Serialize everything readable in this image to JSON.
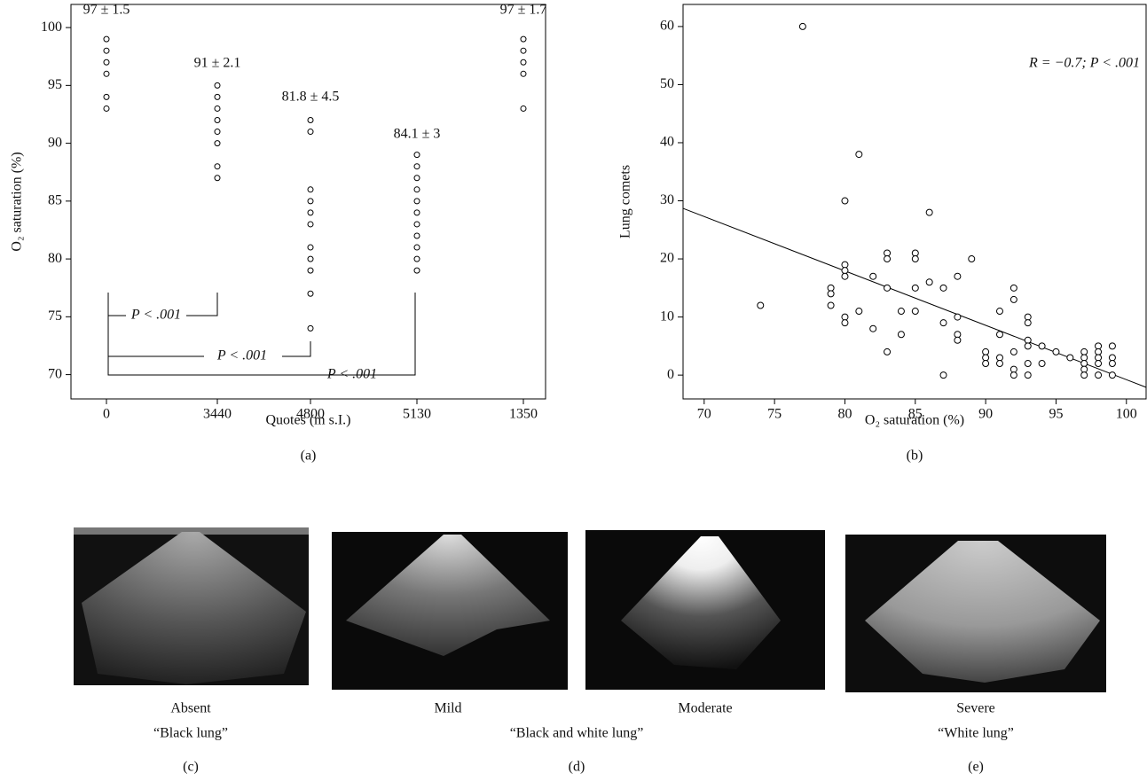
{
  "chart_data": [
    {
      "type": "strip",
      "caption": "(a)",
      "xlabel": "Quotes (m s.I.)",
      "ylabel": "O₂ saturation (%)",
      "categories": [
        "0",
        "3440",
        "4800",
        "5130",
        "1350"
      ],
      "values": [
        [
          99,
          98,
          97,
          96,
          94,
          93
        ],
        [
          95,
          94,
          93,
          92,
          91,
          90,
          88,
          87
        ],
        [
          92,
          91,
          86,
          85,
          84,
          83,
          81,
          80,
          79,
          77,
          74
        ],
        [
          89,
          88,
          87,
          86,
          85,
          84,
          83,
          82,
          81,
          80,
          79
        ],
        [
          99,
          98,
          97,
          96,
          93
        ]
      ],
      "value_labels": [
        "97 ± 1.5",
        "91 ± 2.1",
        "81.8 ± 4.5",
        "84.1 ± 3",
        "97 ± 1.7"
      ],
      "annotations": [
        "P < .001",
        "P < .001",
        "P < .001"
      ],
      "ylim": [
        67.9,
        102
      ],
      "yticks": [
        70,
        75,
        80,
        85,
        90,
        95,
        100
      ]
    },
    {
      "type": "scatter",
      "caption": "(b)",
      "xlabel": "O₂ saturation (%)",
      "ylabel": "Lung comets",
      "annotation": "R = −0.7; P < .001",
      "x": [
        74,
        77,
        79,
        79,
        79,
        80,
        80,
        80,
        80,
        80,
        80,
        81,
        81,
        82,
        82,
        83,
        83,
        83,
        83,
        84,
        84,
        85,
        85,
        85,
        85,
        86,
        86,
        87,
        87,
        87,
        88,
        88,
        88,
        88,
        89,
        90,
        90,
        90,
        91,
        91,
        91,
        91,
        92,
        92,
        92,
        92,
        92,
        93,
        93,
        93,
        93,
        93,
        93,
        94,
        94,
        95,
        96,
        97,
        97,
        97,
        97,
        97,
        98,
        98,
        98,
        98,
        98,
        99,
        99,
        99,
        99
      ],
      "y": [
        12,
        60,
        15,
        14,
        12,
        30,
        19,
        18,
        17,
        10,
        9,
        38,
        11,
        17,
        8,
        21,
        20,
        15,
        4,
        11,
        7,
        21,
        20,
        15,
        11,
        28,
        16,
        15,
        9,
        0,
        17,
        10,
        7,
        6,
        20,
        4,
        3,
        2,
        11,
        7,
        3,
        2,
        15,
        13,
        4,
        1,
        0,
        10,
        9,
        6,
        5,
        2,
        0,
        5,
        2,
        4,
        3,
        4,
        3,
        2,
        1,
        0,
        5,
        4,
        3,
        2,
        0,
        5,
        3,
        2,
        0
      ],
      "trend_line": {
        "x": [
          68.5,
          101.4
        ],
        "y": [
          28.7,
          -2.1
        ]
      },
      "xlim": [
        68.5,
        101.4
      ],
      "xticks": [
        70,
        75,
        80,
        85,
        90,
        95,
        100
      ],
      "ylim": [
        -4.1,
        63.8
      ],
      "yticks": [
        0,
        10,
        20,
        30,
        40,
        50,
        60
      ]
    }
  ],
  "images": {
    "labels": [
      "Absent",
      "Mild",
      "Moderate",
      "Severe"
    ],
    "groups": [
      "“Black lung”",
      "“Black and white lung”",
      "“White lung”"
    ],
    "captions": [
      "(c)",
      "(d)",
      "(e)"
    ]
  }
}
